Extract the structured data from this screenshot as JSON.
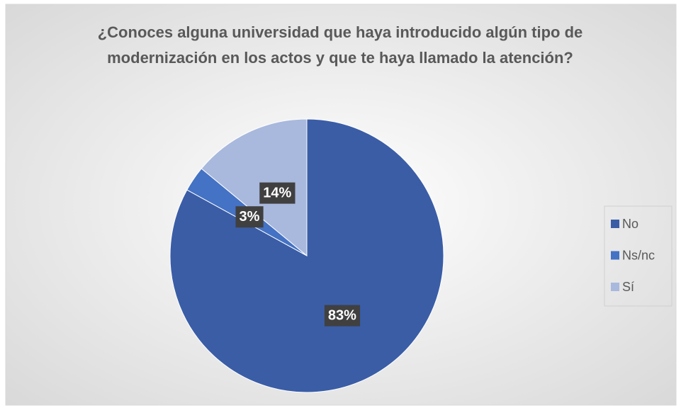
{
  "chart_data": {
    "type": "pie",
    "title": "¿Conoces alguna universidad que haya introducido algún tipo de modernización en los actos y que te haya llamado la atención?",
    "categories": [
      "No",
      "Ns/nc",
      "Sí"
    ],
    "values": [
      83,
      3,
      14
    ],
    "value_labels": [
      "83%",
      "3%",
      "14%"
    ],
    "colors": [
      "#3a5da6",
      "#4472c4",
      "#a9b8dd"
    ],
    "legend": "right"
  }
}
